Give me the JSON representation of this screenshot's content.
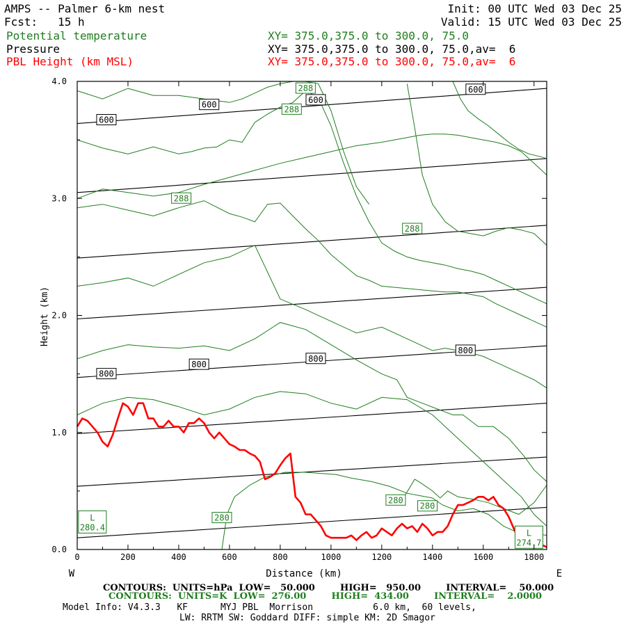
{
  "header": {
    "model_title": "AMPS -- Palmer 6-km nest",
    "fcst": "Fcst:   15 h",
    "init": "Init: 00 UTC Wed 03 Dec 25",
    "valid": "Valid: 15 UTC Wed 03 Dec 25",
    "field1_name": "Potential temperature",
    "field1_xy": "XY= 375.0,375.0 to 300.0, 75.0",
    "field2_name": "Pressure",
    "field2_xy": "XY= 375.0,375.0 to 300.0, 75.0,av=  6",
    "field3_name": "PBL Height (km MSL)",
    "field3_xy": "XY= 375.0,375.0 to 300.0, 75.0,av=  6"
  },
  "colors": {
    "pressure": "#000000",
    "theta": "#1e7d1e",
    "pbl": "#ff0000"
  },
  "footer": {
    "contours_hpa": "CONTOURS:  UNITS=hPa  LOW=   50.000        HIGH=   950.00        INTERVAL=    50.000",
    "contours_k": "CONTOURS:  UNITS=K  LOW=  276.00        HIGH=  434.00        INTERVAL=    2.0000",
    "model_info": "Model Info: V4.3.3   KF      MYJ PBL  Morrison           6.0 km,  60 levels,",
    "model_info2": "LW: RRTM SW: Goddard DIFF: simple KM: 2D Smagor"
  },
  "chart_data": {
    "type": "line",
    "xlabel": "Distance (km)",
    "ylabel": "Height (km)",
    "xlim": [
      0,
      1850
    ],
    "ylim": [
      0,
      4.0
    ],
    "x_ticks": [
      0,
      200,
      400,
      600,
      800,
      1000,
      1200,
      1400,
      1600,
      1800
    ],
    "y_ticks": [
      0.0,
      1.0,
      2.0,
      3.0,
      4.0
    ],
    "y_tick_labels": [
      "0.0",
      "1.0",
      "2.0",
      "3.0",
      "4.0"
    ],
    "left_end_label": "W",
    "right_end_label": "E",
    "pressure_contours": [
      {
        "x": [
          0,
          1850
        ],
        "y": [
          0.1,
          0.36
        ]
      },
      {
        "x": [
          0,
          1850
        ],
        "y": [
          0.54,
          0.79
        ]
      },
      {
        "x": [
          0,
          1850
        ],
        "y": [
          0.99,
          1.25
        ]
      },
      {
        "x": [
          0,
          1850
        ],
        "y": [
          1.47,
          1.74
        ]
      },
      {
        "x": [
          0,
          1850
        ],
        "y": [
          1.97,
          2.24
        ]
      },
      {
        "x": [
          0,
          1850
        ],
        "y": [
          2.49,
          2.77
        ]
      },
      {
        "x": [
          0,
          1850
        ],
        "y": [
          3.05,
          3.34
        ]
      },
      {
        "x": [
          0,
          1850
        ],
        "y": [
          3.64,
          3.94
        ]
      }
    ],
    "pressure_labels": [
      {
        "text": "800",
        "x": 115,
        "y": 1.5
      },
      {
        "text": "800",
        "x": 480,
        "y": 1.58
      },
      {
        "text": "800",
        "x": 940,
        "y": 1.63
      },
      {
        "text": "800",
        "x": 1530,
        "y": 1.7
      },
      {
        "text": "600",
        "x": 115,
        "y": 3.67
      },
      {
        "text": "600",
        "x": 520,
        "y": 3.8
      },
      {
        "text": "600",
        "x": 940,
        "y": 3.84
      },
      {
        "text": "600",
        "x": 1570,
        "y": 3.93
      }
    ],
    "theta_contours": [
      {
        "x": [
          570,
          590,
          620,
          680,
          740,
          820,
          900,
          960,
          1020,
          1080,
          1160,
          1230,
          1300,
          1350,
          1400,
          1440,
          1500,
          1560,
          1620,
          1680,
          1740,
          1800,
          1850
        ],
        "y": [
          0.0,
          0.3,
          0.45,
          0.55,
          0.62,
          0.66,
          0.66,
          0.65,
          0.64,
          0.61,
          0.58,
          0.54,
          0.48,
          0.46,
          0.44,
          0.38,
          0.33,
          0.35,
          0.3,
          0.2,
          0.14,
          0.14,
          0.12
        ]
      },
      {
        "x": [
          1230,
          1280,
          1330,
          1360,
          1400,
          1430,
          1460,
          1500,
          1560,
          1620,
          1680,
          1740,
          1800,
          1850
        ],
        "y": [
          0.38,
          0.42,
          0.6,
          0.56,
          0.5,
          0.44,
          0.5,
          0.45,
          0.43,
          0.4,
          0.35,
          0.3,
          0.4,
          0.55
        ]
      },
      {
        "x": [
          0,
          100,
          200,
          300,
          400,
          500,
          600,
          700,
          800,
          900,
          1000,
          1100,
          1200,
          1300,
          1400,
          1500,
          1600,
          1700,
          1750,
          1800,
          1850
        ],
        "y": [
          1.15,
          1.25,
          1.3,
          1.28,
          1.22,
          1.15,
          1.2,
          1.3,
          1.35,
          1.33,
          1.25,
          1.2,
          1.3,
          1.28,
          1.15,
          0.95,
          0.75,
          0.55,
          0.45,
          0.3,
          0.2
        ]
      },
      {
        "x": [
          0,
          100,
          200,
          300,
          400,
          500,
          600,
          700,
          800,
          900,
          1000,
          1100,
          1200,
          1260,
          1300,
          1360,
          1420,
          1480,
          1520,
          1580,
          1640,
          1700,
          1760,
          1800,
          1850
        ],
        "y": [
          1.63,
          1.7,
          1.75,
          1.73,
          1.72,
          1.74,
          1.7,
          1.8,
          1.94,
          1.88,
          1.75,
          1.62,
          1.5,
          1.45,
          1.3,
          1.25,
          1.2,
          1.15,
          1.15,
          1.05,
          1.05,
          0.95,
          0.8,
          0.68,
          0.58
        ]
      },
      {
        "x": [
          0,
          100,
          200,
          300,
          400,
          500,
          600,
          700,
          800,
          900,
          1000,
          1100,
          1200,
          1300,
          1350,
          1400,
          1450,
          1500,
          1550,
          1600,
          1650,
          1700,
          1750,
          1800,
          1850
        ],
        "y": [
          2.25,
          2.28,
          2.32,
          2.25,
          2.35,
          2.45,
          2.5,
          2.6,
          2.14,
          2.05,
          1.95,
          1.85,
          1.9,
          1.8,
          1.75,
          1.7,
          1.72,
          1.7,
          1.68,
          1.65,
          1.6,
          1.55,
          1.5,
          1.45,
          1.38
        ]
      },
      {
        "x": [
          0,
          100,
          200,
          300,
          400,
          500,
          600,
          650,
          700,
          750,
          800,
          850,
          900,
          950,
          1000,
          1050,
          1100,
          1150,
          1200,
          1250,
          1300,
          1350,
          1400,
          1450,
          1500,
          1550,
          1600,
          1650,
          1700,
          1750,
          1800,
          1850
        ],
        "y": [
          2.92,
          2.95,
          2.9,
          2.85,
          2.92,
          2.98,
          2.87,
          2.84,
          2.8,
          2.95,
          2.96,
          2.85,
          2.74,
          2.64,
          2.52,
          2.43,
          2.34,
          2.3,
          2.25,
          2.24,
          2.23,
          2.22,
          2.21,
          2.2,
          2.2,
          2.18,
          2.16,
          2.1,
          2.05,
          2.0,
          1.95,
          1.9
        ]
      },
      {
        "x": [
          0,
          100,
          200,
          300,
          400,
          450,
          500,
          550,
          600,
          650,
          700,
          750,
          800,
          850,
          900,
          950,
          1000,
          1050,
          1100,
          1150,
          1200,
          1250,
          1300,
          1350,
          1400,
          1450,
          1500,
          1550,
          1600,
          1650,
          1700,
          1750,
          1800,
          1850
        ],
        "y": [
          3.5,
          3.43,
          3.38,
          3.44,
          3.38,
          3.4,
          3.43,
          3.44,
          3.5,
          3.48,
          3.65,
          3.72,
          3.78,
          3.82,
          3.92,
          3.86,
          3.62,
          3.3,
          3.02,
          2.8,
          2.62,
          2.55,
          2.5,
          2.47,
          2.45,
          2.43,
          2.4,
          2.38,
          2.35,
          2.3,
          2.25,
          2.2,
          2.15,
          2.1
        ]
      },
      {
        "x": [
          0,
          100,
          200,
          300,
          400,
          500,
          600,
          650,
          700,
          750,
          800,
          850,
          900,
          950,
          1000,
          1050,
          1100,
          1150
        ],
        "y": [
          3.92,
          3.85,
          3.94,
          3.88,
          3.88,
          3.85,
          3.82,
          3.85,
          3.9,
          3.95,
          3.98,
          4.0,
          4.0,
          3.98,
          3.75,
          3.4,
          3.1,
          2.95
        ]
      },
      {
        "x": [
          0,
          100,
          200,
          300,
          400,
          500,
          600,
          700,
          800,
          900,
          1000,
          1100,
          1200,
          1300,
          1350,
          1400,
          1450,
          1500,
          1550,
          1600,
          1650,
          1700,
          1750,
          1800,
          1850
        ],
        "y": [
          3.0,
          3.08,
          3.05,
          3.02,
          3.05,
          3.12,
          3.18,
          3.24,
          3.3,
          3.35,
          3.4,
          3.45,
          3.48,
          3.52,
          3.54,
          3.55,
          3.55,
          3.54,
          3.52,
          3.5,
          3.48,
          3.45,
          3.4,
          3.3,
          3.2
        ]
      },
      {
        "x": [
          1300,
          1330,
          1360,
          1400,
          1450,
          1500,
          1550,
          1600,
          1650,
          1700,
          1750,
          1800,
          1850
        ],
        "y": [
          3.98,
          3.6,
          3.2,
          2.95,
          2.8,
          2.72,
          2.7,
          2.68,
          2.72,
          2.75,
          2.73,
          2.7,
          2.6
        ]
      },
      {
        "x": [
          1480,
          1510,
          1540,
          1580,
          1620,
          1660,
          1700,
          1740,
          1780,
          1820,
          1850
        ],
        "y": [
          4.0,
          3.85,
          3.75,
          3.68,
          3.62,
          3.55,
          3.48,
          3.42,
          3.38,
          3.36,
          3.34
        ]
      }
    ],
    "theta_labels": [
      {
        "text": "280",
        "x": 570,
        "y": 0.27
      },
      {
        "text": "280",
        "x": 1255,
        "y": 0.42
      },
      {
        "text": "280",
        "x": 1380,
        "y": 0.37
      },
      {
        "text": "288",
        "x": 410,
        "y": 3.0
      },
      {
        "text": "288",
        "x": 1320,
        "y": 2.74
      },
      {
        "text": "288",
        "x": 845,
        "y": 3.76
      },
      {
        "text": "288",
        "x": 900,
        "y": 3.94
      }
    ],
    "low_markers": [
      {
        "letter": "L",
        "value": "280.4",
        "x": 60,
        "y": 0.17
      },
      {
        "letter": "L",
        "value": "274.7",
        "x": 1780,
        "y": 0.04
      }
    ],
    "pbl_height": {
      "x": [
        0,
        20,
        40,
        60,
        80,
        100,
        120,
        140,
        160,
        180,
        200,
        220,
        240,
        260,
        280,
        300,
        320,
        340,
        360,
        380,
        400,
        420,
        440,
        460,
        480,
        500,
        520,
        540,
        560,
        580,
        600,
        620,
        640,
        660,
        680,
        700,
        720,
        740,
        760,
        780,
        800,
        820,
        840,
        860,
        880,
        900,
        920,
        940,
        960,
        980,
        1000,
        1020,
        1040,
        1060,
        1080,
        1100,
        1120,
        1140,
        1160,
        1180,
        1200,
        1220,
        1240,
        1260,
        1280,
        1300,
        1320,
        1340,
        1360,
        1380,
        1400,
        1420,
        1440,
        1460,
        1480,
        1500,
        1520,
        1540,
        1560,
        1580,
        1600,
        1620,
        1640,
        1660,
        1680,
        1700,
        1720,
        1740,
        1760,
        1780,
        1800,
        1820,
        1850
      ],
      "y": [
        1.05,
        1.12,
        1.1,
        1.05,
        1.0,
        0.92,
        0.88,
        0.98,
        1.12,
        1.25,
        1.22,
        1.15,
        1.25,
        1.25,
        1.12,
        1.12,
        1.05,
        1.05,
        1.1,
        1.05,
        1.05,
        1.0,
        1.08,
        1.08,
        1.12,
        1.08,
        1.0,
        0.95,
        1.0,
        0.95,
        0.9,
        0.88,
        0.85,
        0.85,
        0.82,
        0.8,
        0.75,
        0.6,
        0.62,
        0.65,
        0.72,
        0.78,
        0.82,
        0.45,
        0.4,
        0.3,
        0.3,
        0.25,
        0.2,
        0.12,
        0.1,
        0.1,
        0.1,
        0.1,
        0.12,
        0.08,
        0.12,
        0.15,
        0.1,
        0.12,
        0.18,
        0.15,
        0.12,
        0.18,
        0.22,
        0.18,
        0.2,
        0.15,
        0.22,
        0.18,
        0.12,
        0.15,
        0.15,
        0.2,
        0.3,
        0.38,
        0.38,
        0.4,
        0.42,
        0.45,
        0.45,
        0.42,
        0.45,
        0.38,
        0.35,
        0.28,
        0.18,
        0.08,
        0.08,
        0.08,
        0.1,
        0.05,
        0.02
      ]
    }
  }
}
